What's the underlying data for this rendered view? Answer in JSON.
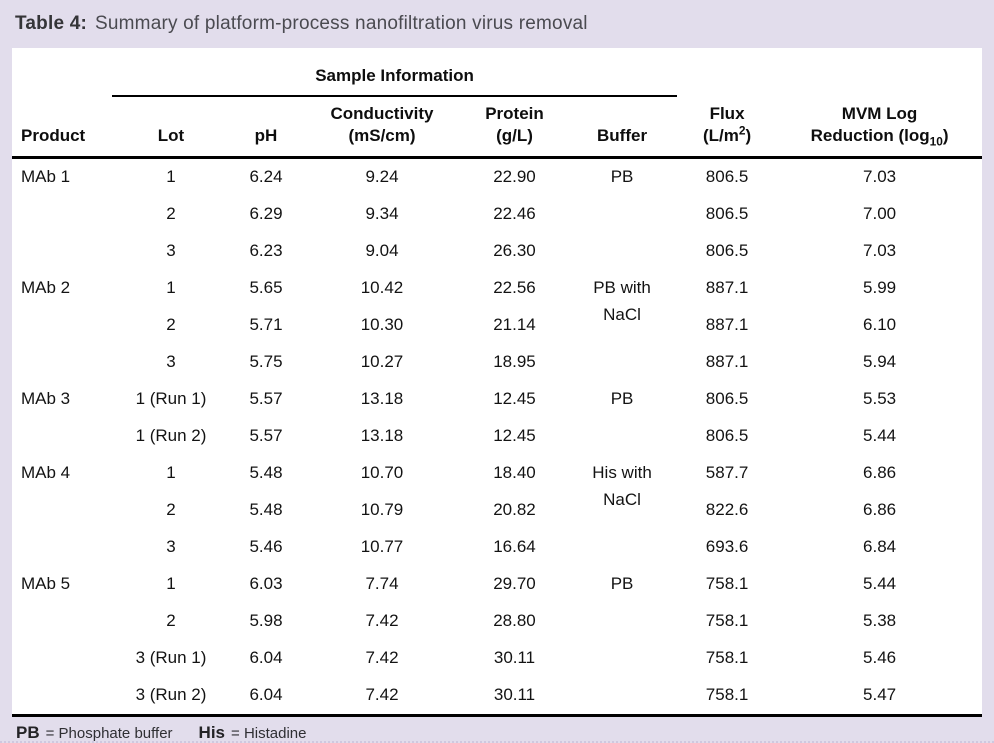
{
  "title": {
    "label": "Table 4:",
    "text": "Summary of platform-process nanofiltration virus removal"
  },
  "table": {
    "group_header": "Sample Information",
    "columns": {
      "product": "Product",
      "lot": "Lot",
      "ph": "pH",
      "conductivity_line1": "Conductivity",
      "conductivity_line2": "(mS/cm)",
      "protein_line1": "Protein",
      "protein_line2": "(g/L)",
      "buffer": "Buffer",
      "flux_line1": "Flux",
      "flux_line2_pre": "(L/m",
      "flux_sup": "2",
      "flux_line2_post": ")",
      "mvm_line1": "MVM Log",
      "mvm_line2_pre": "Reduction (log",
      "mvm_sub": "10",
      "mvm_line2_post": ")"
    },
    "rows": [
      {
        "product": "MAb 1",
        "lot": "1",
        "ph": "6.24",
        "conductivity": "9.24",
        "protein": "22.90",
        "buffer": "PB",
        "flux": "806.5",
        "mvm": "7.03"
      },
      {
        "product": "",
        "lot": "2",
        "ph": "6.29",
        "conductivity": "9.34",
        "protein": "22.46",
        "buffer": "",
        "flux": "806.5",
        "mvm": "7.00"
      },
      {
        "product": "",
        "lot": "3",
        "ph": "6.23",
        "conductivity": "9.04",
        "protein": "26.30",
        "buffer": "",
        "flux": "806.5",
        "mvm": "7.03"
      },
      {
        "product": "MAb 2",
        "lot": "1",
        "ph": "5.65",
        "conductivity": "10.42",
        "protein": "22.56",
        "buffer": "PB with",
        "flux": "887.1",
        "mvm": "5.99"
      },
      {
        "product": "",
        "lot": "2",
        "ph": "5.71",
        "conductivity": "10.30",
        "protein": "21.14",
        "buffer": "NaCl",
        "buffer_cont": true,
        "flux": "887.1",
        "mvm": "6.10"
      },
      {
        "product": "",
        "lot": "3",
        "ph": "5.75",
        "conductivity": "10.27",
        "protein": "18.95",
        "buffer": "",
        "flux": "887.1",
        "mvm": "5.94"
      },
      {
        "product": "MAb 3",
        "lot": "1 (Run 1)",
        "ph": "5.57",
        "conductivity": "13.18",
        "protein": "12.45",
        "buffer": "PB",
        "flux": "806.5",
        "mvm": "5.53"
      },
      {
        "product": "",
        "lot": "1 (Run 2)",
        "ph": "5.57",
        "conductivity": "13.18",
        "protein": "12.45",
        "buffer": "",
        "flux": "806.5",
        "mvm": "5.44"
      },
      {
        "product": "MAb 4",
        "lot": "1",
        "ph": "5.48",
        "conductivity": "10.70",
        "protein": "18.40",
        "buffer": "His with",
        "flux": "587.7",
        "mvm": "6.86"
      },
      {
        "product": "",
        "lot": "2",
        "ph": "5.48",
        "conductivity": "10.79",
        "protein": "20.82",
        "buffer": "NaCl",
        "buffer_cont": true,
        "flux": "822.6",
        "mvm": "6.86"
      },
      {
        "product": "",
        "lot": "3",
        "ph": "5.46",
        "conductivity": "10.77",
        "protein": "16.64",
        "buffer": "",
        "flux": "693.6",
        "mvm": "6.84"
      },
      {
        "product": "MAb 5",
        "lot": "1",
        "ph": "6.03",
        "conductivity": "7.74",
        "protein": "29.70",
        "buffer": "PB",
        "flux": "758.1",
        "mvm": "5.44"
      },
      {
        "product": "",
        "lot": "2",
        "ph": "5.98",
        "conductivity": "7.42",
        "protein": "28.80",
        "buffer": "",
        "flux": "758.1",
        "mvm": "5.38"
      },
      {
        "product": "",
        "lot": "3 (Run 1)",
        "ph": "6.04",
        "conductivity": "7.42",
        "protein": "30.11",
        "buffer": "",
        "flux": "758.1",
        "mvm": "5.46"
      },
      {
        "product": "",
        "lot": "3 (Run 2)",
        "ph": "6.04",
        "conductivity": "7.42",
        "protein": "30.11",
        "buffer": "",
        "flux": "758.1",
        "mvm": "5.47"
      }
    ]
  },
  "footnotes": [
    {
      "abbr": "PB",
      "definition": "= Phosphate buffer"
    },
    {
      "abbr": "His",
      "definition": "= Histadine"
    }
  ],
  "colors": {
    "background": "#e2ddec",
    "panel": "#ffffff",
    "text": "#131313",
    "rule": "#000000"
  }
}
